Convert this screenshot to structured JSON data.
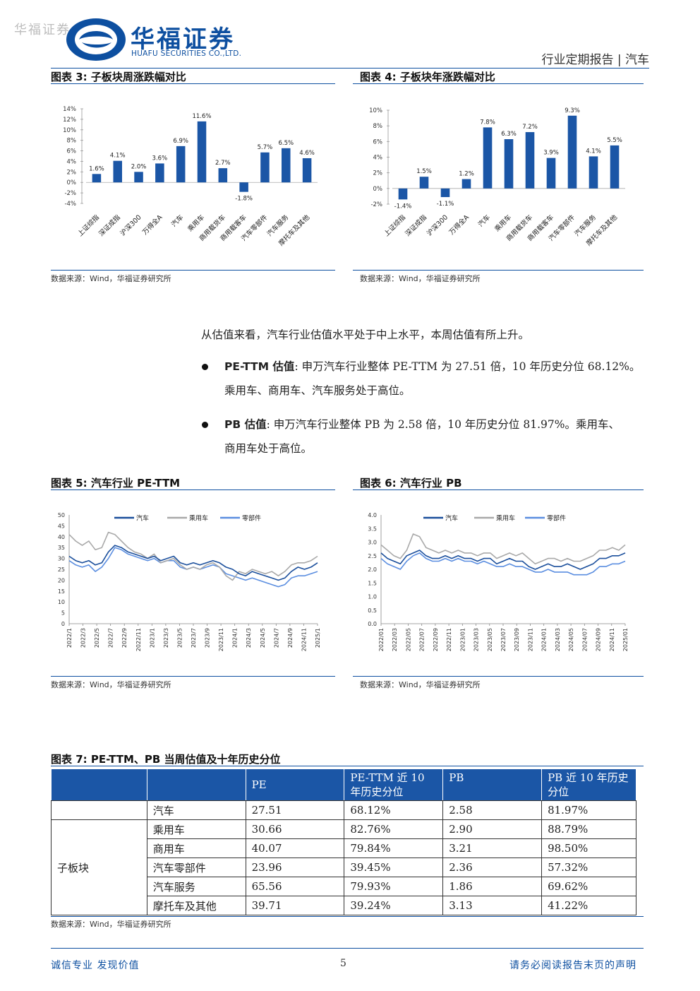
{
  "header": {
    "watermark": "华福证券",
    "logo_cn": "华福证券",
    "logo_en": "HUAFU SECURITIES CO.,LTD.",
    "report_type": "行业定期报告 | 汽车"
  },
  "figures": {
    "fig3_title": "图表 3:  子板块周涨跌幅对比",
    "fig4_title": "图表 4:  子板块年涨跌幅对比",
    "fig5_title": "图表 5:  汽车行业 PE-TTM",
    "fig6_title": "图表 6:  汽车行业 PB",
    "fig7_title": "图表 7:  PE-TTM、PB 当周估值及十年历史分位",
    "source": "数据来源：Wind，华福证券研究所"
  },
  "body": {
    "intro": "从估值来看，汽车行业估值水平处于中上水平，本周估值有所上升。",
    "pe_label": "PE-TTM 估值",
    "pe_text_1": ": 申万汽车行业整体 PE-TTM 为 27.51 倍，10 年历史分位 68.12%。",
    "pe_text_2": "乘用车、商用车、汽车服务处于高位。",
    "pb_label": "PB 估值",
    "pb_text_1": ":  申万汽车行业整体 PB 为 2.58 倍，10 年历史分位 81.97%。乘用车、",
    "pb_text_2": "商用车处于高位。"
  },
  "chart_data": [
    {
      "type": "bar",
      "ylim": [
        -4,
        14
      ],
      "y_ticks": [
        "14%",
        "12%",
        "10%",
        "8%",
        "6%",
        "4%",
        "2%",
        "0%",
        "-2%",
        "-4%"
      ],
      "categories": [
        "上证综指",
        "深证成指",
        "沪深300",
        "万得全A",
        "汽车",
        "乘用车",
        "商用载货车",
        "商用载客车",
        "汽车零部件",
        "汽车服务",
        "摩托车及其他"
      ],
      "values": [
        1.6,
        4.1,
        2.0,
        3.6,
        6.9,
        11.6,
        2.7,
        -1.8,
        5.7,
        6.5,
        4.6
      ],
      "labels": [
        "1.6%",
        "4.1%",
        "2.0%",
        "3.6%",
        "6.9%",
        "11.6%",
        "2.7%",
        "-1.8%",
        "5.7%",
        "6.5%",
        "4.6%"
      ],
      "color": "#1b56a6"
    },
    {
      "type": "bar",
      "ylim": [
        -2,
        10
      ],
      "y_ticks": [
        "10%",
        "8%",
        "6%",
        "4%",
        "2%",
        "0%",
        "-2%"
      ],
      "categories": [
        "上证综指",
        "深证成指",
        "沪深300",
        "万得全A",
        "汽车",
        "乘用车",
        "商用载货车",
        "商用载客车",
        "汽车零部件",
        "汽车服务",
        "摩托车及其他"
      ],
      "values": [
        -1.4,
        1.5,
        -1.1,
        1.2,
        7.8,
        6.3,
        7.2,
        3.9,
        9.3,
        4.1,
        5.5
      ],
      "labels": [
        "-1.4%",
        "1.5%",
        "-1.1%",
        "1.2%",
        "7.8%",
        "6.3%",
        "7.2%",
        "3.9%",
        "9.3%",
        "4.1%",
        "5.5%"
      ],
      "color": "#1b56a6"
    },
    {
      "type": "line",
      "ylim": [
        0,
        50
      ],
      "y_ticks": [
        "50",
        "45",
        "40",
        "35",
        "30",
        "25",
        "20",
        "15",
        "10",
        "5",
        "0"
      ],
      "x_ticks": [
        "2022/1",
        "2022/3",
        "2022/5",
        "2022/7",
        "2022/9",
        "2022/11",
        "2023/1",
        "2023/3",
        "2023/5",
        "2023/7",
        "2023/9",
        "2023/11",
        "2024/1",
        "2024/3",
        "2024/5",
        "2024/7",
        "2024/9",
        "2024/11",
        "2025/1"
      ],
      "legend": [
        "汽车",
        "乘用车",
        "零部件"
      ],
      "series": [
        {
          "name": "汽车",
          "color": "#1b4f9c",
          "values": [
            31,
            29,
            28,
            29,
            27,
            28,
            33,
            36,
            35,
            33,
            32,
            31,
            30,
            31,
            29,
            30,
            31,
            28,
            27,
            28,
            27,
            28,
            29,
            28,
            26,
            25,
            23,
            22,
            24,
            23,
            22,
            21,
            20,
            21,
            24,
            26,
            25,
            26,
            28
          ]
        },
        {
          "name": "乘用车",
          "color": "#a9a9a9",
          "values": [
            41,
            38,
            36,
            38,
            34,
            35,
            42,
            41,
            38,
            35,
            33,
            32,
            30,
            32,
            28,
            29,
            30,
            27,
            25,
            26,
            25,
            27,
            28,
            26,
            22,
            20,
            24,
            23,
            25,
            24,
            23,
            24,
            22,
            24,
            27,
            28,
            28,
            29,
            31
          ]
        },
        {
          "name": "零部件",
          "color": "#5b8ee0",
          "values": [
            29,
            27,
            26,
            27,
            24,
            26,
            30,
            35,
            34,
            32,
            31,
            30,
            29,
            30,
            28,
            29,
            29,
            26,
            25,
            26,
            25,
            26,
            27,
            26,
            23,
            22,
            21,
            20,
            21,
            20,
            19,
            18,
            17,
            18,
            21,
            22,
            22,
            23,
            24
          ]
        }
      ]
    },
    {
      "type": "line",
      "ylim": [
        0,
        4
      ],
      "y_ticks": [
        "4.0",
        "3.5",
        "3.0",
        "2.5",
        "2.0",
        "1.5",
        "1.0",
        "0.5",
        "0.0"
      ],
      "x_ticks": [
        "2022/01",
        "2022/03",
        "2022/05",
        "2022/07",
        "2022/09",
        "2022/11",
        "2023/01",
        "2023/03",
        "2023/05",
        "2023/07",
        "2023/09",
        "2023/11",
        "2024/01",
        "2024/03",
        "2024/05",
        "2024/07",
        "2024/09",
        "2024/11",
        "2025/01"
      ],
      "legend": [
        "汽车",
        "乘用车",
        "零部件"
      ],
      "series": [
        {
          "name": "汽车",
          "color": "#1b4f9c",
          "values": [
            2.6,
            2.4,
            2.3,
            2.2,
            2.5,
            2.6,
            2.7,
            2.5,
            2.4,
            2.4,
            2.5,
            2.4,
            2.5,
            2.4,
            2.4,
            2.3,
            2.4,
            2.4,
            2.2,
            2.3,
            2.4,
            2.3,
            2.3,
            2.1,
            2.0,
            2.1,
            2.2,
            2.1,
            2.1,
            2.2,
            2.1,
            2.0,
            2.1,
            2.2,
            2.4,
            2.4,
            2.5,
            2.5,
            2.6
          ]
        },
        {
          "name": "乘用车",
          "color": "#a9a9a9",
          "values": [
            2.9,
            2.7,
            2.5,
            2.4,
            2.7,
            3.3,
            3.2,
            2.8,
            2.7,
            2.6,
            2.7,
            2.6,
            2.7,
            2.6,
            2.6,
            2.5,
            2.6,
            2.6,
            2.4,
            2.5,
            2.6,
            2.5,
            2.6,
            2.4,
            2.2,
            2.3,
            2.4,
            2.4,
            2.3,
            2.4,
            2.3,
            2.3,
            2.4,
            2.5,
            2.7,
            2.7,
            2.8,
            2.7,
            2.9
          ]
        },
        {
          "name": "零部件",
          "color": "#5b8ee0",
          "values": [
            2.4,
            2.2,
            2.1,
            2.0,
            2.3,
            2.5,
            2.6,
            2.4,
            2.3,
            2.3,
            2.4,
            2.3,
            2.4,
            2.3,
            2.3,
            2.2,
            2.3,
            2.2,
            2.1,
            2.1,
            2.2,
            2.1,
            2.1,
            2.0,
            1.9,
            1.9,
            2.0,
            1.9,
            1.9,
            1.9,
            1.8,
            1.8,
            1.8,
            1.9,
            2.1,
            2.1,
            2.2,
            2.2,
            2.3
          ]
        }
      ]
    }
  ],
  "table": {
    "headers": [
      "",
      "",
      "PE",
      "PE-TTM 近 10 年历史分位",
      "PB",
      "PB 近 10 年历史分位"
    ],
    "header_lines": {
      "pe_pct_1": "PE-TTM 近 10",
      "pe_pct_2": "年历史分位",
      "pb_pct_1": "PB 近 10 年历史",
      "pb_pct_2": "分位"
    },
    "group_label": "子板块",
    "rows": [
      {
        "name": "汽车",
        "pe": "27.51",
        "pe_pct": "68.12%",
        "pb": "2.58",
        "pb_pct": "81.97%"
      },
      {
        "name": "乘用车",
        "pe": "30.66",
        "pe_pct": "82.76%",
        "pb": "2.90",
        "pb_pct": "88.79%"
      },
      {
        "name": "商用车",
        "pe": "40.07",
        "pe_pct": "79.84%",
        "pb": "3.21",
        "pb_pct": "98.50%"
      },
      {
        "name": "汽车零部件",
        "pe": "23.96",
        "pe_pct": "39.45%",
        "pb": "2.36",
        "pb_pct": "57.32%"
      },
      {
        "name": "汽车服务",
        "pe": "65.56",
        "pe_pct": "79.93%",
        "pb": "1.86",
        "pb_pct": "69.62%"
      },
      {
        "name": "摩托车及其他",
        "pe": "39.71",
        "pe_pct": "39.24%",
        "pb": "3.13",
        "pb_pct": "41.22%"
      }
    ]
  },
  "footer": {
    "left": "诚信专业  发现价值",
    "page": "5",
    "right": "请务必阅读报告末页的声明"
  },
  "colors": {
    "brand": "#0d4fa0",
    "bar": "#1b56a6",
    "table_header": "#1b56a6"
  }
}
